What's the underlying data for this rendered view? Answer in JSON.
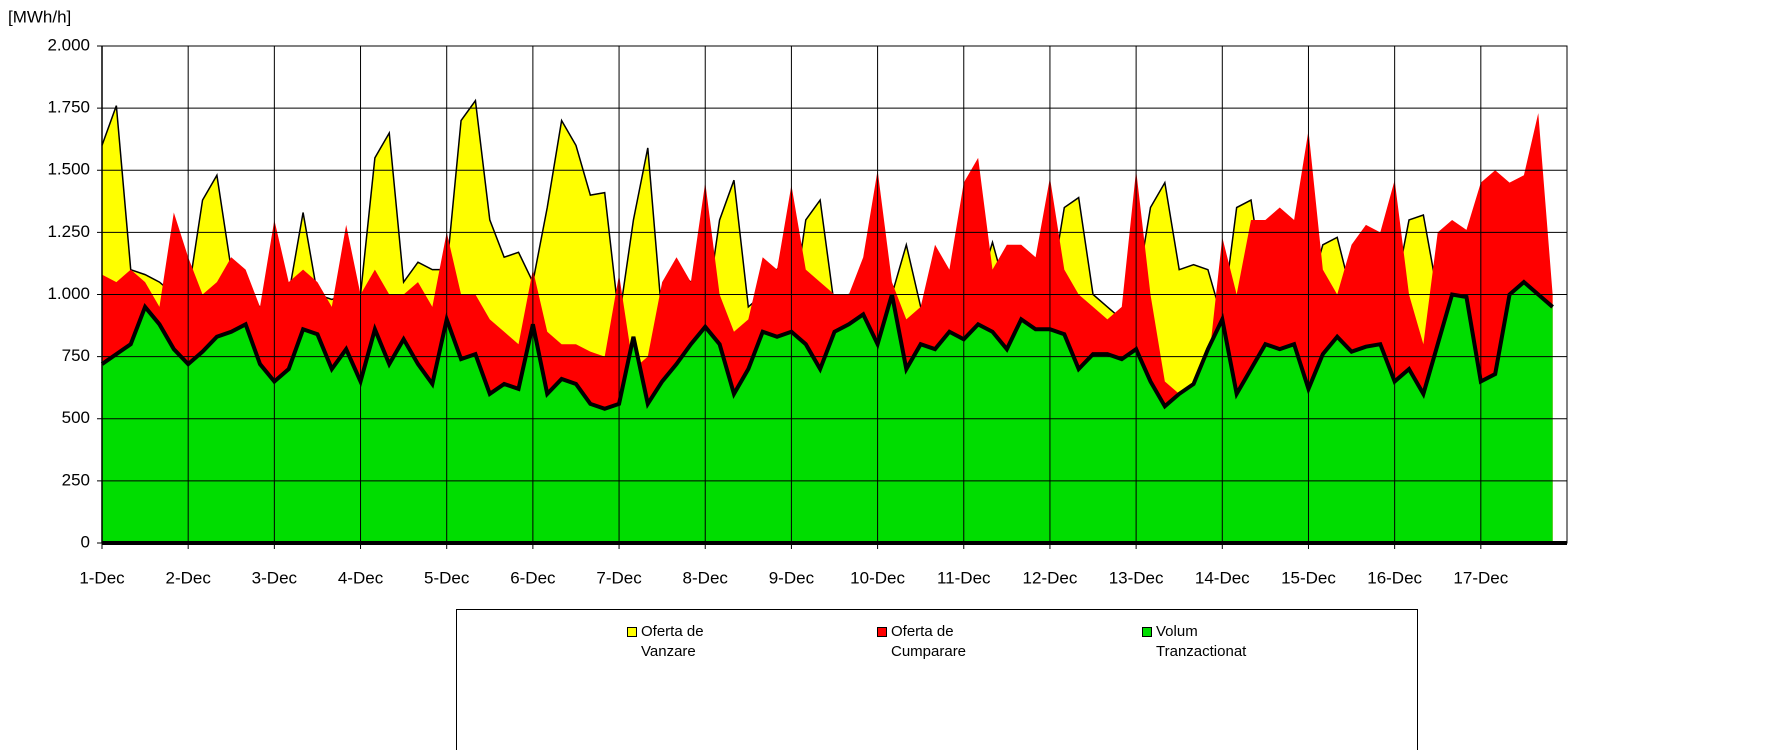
{
  "chart_data": {
    "type": "area",
    "y_label": "[MWh/h]",
    "categories": [
      "1-Dec",
      null,
      null,
      null,
      null,
      null,
      "2-Dec",
      null,
      null,
      null,
      null,
      null,
      "3-Dec",
      null,
      null,
      null,
      null,
      null,
      "4-Dec",
      null,
      null,
      null,
      null,
      null,
      "5-Dec",
      null,
      null,
      null,
      null,
      null,
      "6-Dec",
      null,
      null,
      null,
      null,
      null,
      "7-Dec",
      null,
      null,
      null,
      null,
      null,
      "8-Dec",
      null,
      null,
      null,
      null,
      null,
      "9-Dec",
      null,
      null,
      null,
      null,
      null,
      "10-Dec",
      null,
      null,
      null,
      null,
      null,
      "11-Dec",
      null,
      null,
      null,
      null,
      null,
      "12-Dec",
      null,
      null,
      null,
      null,
      null,
      "13-Dec",
      null,
      null,
      null,
      null,
      null,
      "14-Dec",
      null,
      null,
      null,
      null,
      null,
      "15-Dec",
      null,
      null,
      null,
      null,
      null,
      "16-Dec",
      null,
      null,
      null,
      null,
      null,
      "17-Dec",
      null,
      null,
      null,
      null,
      null
    ],
    "series": [
      {
        "name": "Oferta de Vanzare",
        "color": "#ffff00",
        "values": [
          1600,
          1760,
          1100,
          1080,
          1050,
          1000,
          1000,
          1380,
          1480,
          1100,
          1000,
          950,
          900,
          1000,
          1330,
          1000,
          980,
          1000,
          1000,
          1550,
          1650,
          1050,
          1130,
          1100,
          1100,
          1700,
          1780,
          1300,
          1150,
          1170,
          1050,
          1350,
          1700,
          1600,
          1400,
          1410,
          900,
          1300,
          1590,
          900,
          1100,
          1050,
          900,
          1300,
          1460,
          950,
          1000,
          1100,
          900,
          1300,
          1380,
          950,
          1000,
          1000,
          900,
          1000,
          1200,
          950,
          950,
          1000,
          1000,
          1020,
          1210,
          1000,
          1000,
          1000,
          1000,
          1350,
          1390,
          1000,
          950,
          900,
          1000,
          1350,
          1450,
          1100,
          1120,
          1100,
          900,
          1350,
          1380,
          1000,
          950,
          1000,
          1000,
          1200,
          1230,
          1000,
          950,
          900,
          1000,
          1300,
          1320,
          1000,
          950,
          950,
          1100,
          1230,
          1000,
          1000,
          1000,
          1000
        ]
      },
      {
        "name": "Oferta de Cumparare",
        "color": "#ff0000",
        "values": [
          1080,
          1050,
          1100,
          1050,
          950,
          1330,
          1150,
          1000,
          1050,
          1150,
          1100,
          950,
          1300,
          1050,
          1100,
          1050,
          950,
          1280,
          1000,
          1100,
          1000,
          1000,
          1050,
          950,
          1250,
          1000,
          1000,
          900,
          850,
          800,
          1100,
          850,
          800,
          800,
          770,
          750,
          1080,
          700,
          750,
          1050,
          1150,
          1050,
          1450,
          1000,
          850,
          900,
          1150,
          1100,
          1440,
          1100,
          1050,
          1000,
          1000,
          1150,
          1500,
          1050,
          900,
          950,
          1200,
          1100,
          1450,
          1550,
          1100,
          1200,
          1200,
          1150,
          1470,
          1100,
          1000,
          950,
          900,
          950,
          1500,
          1000,
          650,
          600,
          650,
          700,
          1230,
          1000,
          1300,
          1300,
          1350,
          1300,
          1660,
          1100,
          1000,
          1200,
          1280,
          1250,
          1460,
          1000,
          800,
          1250,
          1300,
          1260,
          1450,
          1500,
          1450,
          1480,
          1730,
          1000
        ]
      },
      {
        "name": "Volum Tranzactionat",
        "color": "#00dd00",
        "values": [
          720,
          760,
          800,
          950,
          880,
          780,
          720,
          770,
          830,
          850,
          880,
          720,
          650,
          700,
          860,
          840,
          700,
          780,
          650,
          860,
          720,
          820,
          720,
          640,
          900,
          740,
          760,
          600,
          640,
          620,
          880,
          600,
          660,
          640,
          560,
          540,
          560,
          830,
          560,
          650,
          720,
          800,
          870,
          800,
          600,
          700,
          850,
          830,
          850,
          800,
          700,
          850,
          880,
          920,
          800,
          1000,
          700,
          800,
          780,
          850,
          820,
          880,
          850,
          780,
          900,
          860,
          860,
          840,
          700,
          760,
          760,
          740,
          780,
          650,
          550,
          600,
          640,
          780,
          900,
          600,
          700,
          800,
          780,
          800,
          620,
          760,
          830,
          770,
          790,
          800,
          650,
          700,
          600,
          800,
          1000,
          990,
          650,
          680,
          1000,
          1050,
          1000,
          950
        ]
      }
    ],
    "ylim": [
      0,
      2000
    ],
    "yticks": [
      0,
      250,
      500,
      750,
      {
        "value": 1000,
        "label": "1.000"
      },
      {
        "value": 1250,
        "label": "1.250"
      },
      {
        "value": 1500,
        "label": "1.500"
      },
      {
        "value": 1750,
        "label": "1.750"
      },
      {
        "value": 2000,
        "label": "2.000"
      }
    ],
    "grid": true,
    "legend": "bottom"
  }
}
